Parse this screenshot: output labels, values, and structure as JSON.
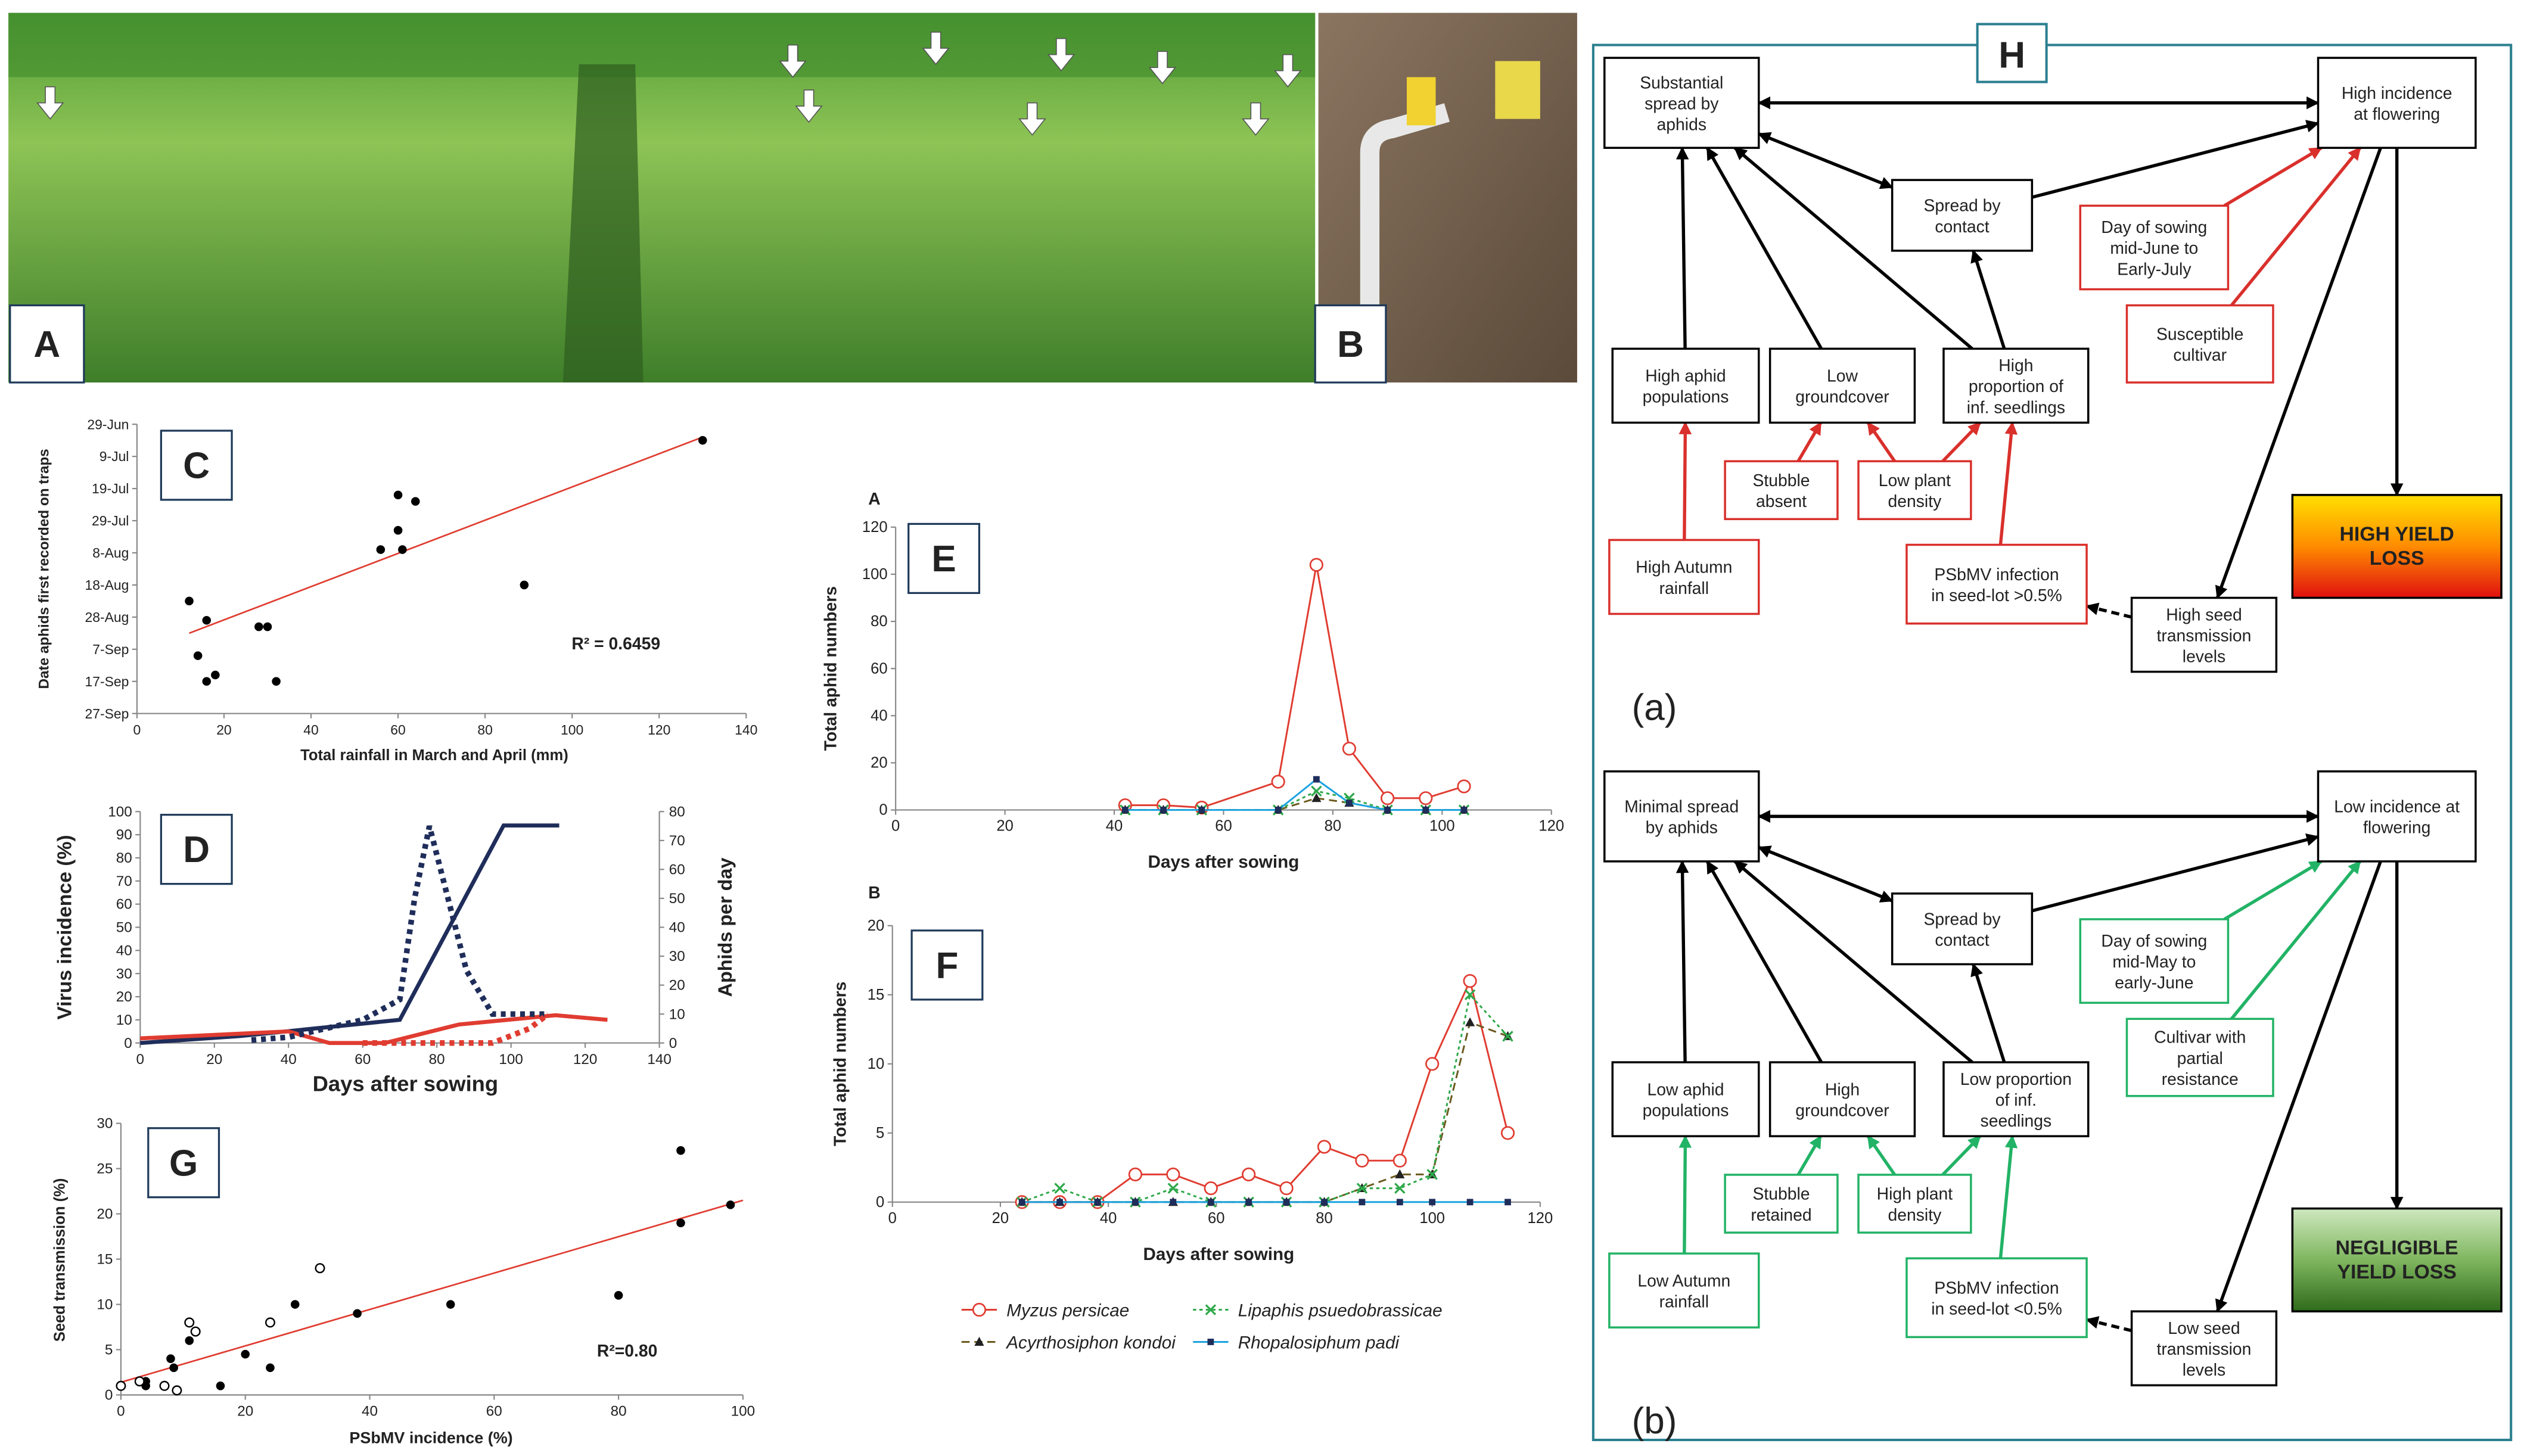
{
  "photos": [
    {
      "label": "A"
    },
    {
      "label": "B"
    }
  ],
  "chart_data": [
    {
      "type": "scatter",
      "panel": "C",
      "xlabel": "Total rainfall in March and April (mm)",
      "ylabel": "Date aphids first recorded on traps",
      "annotation": "R² = 0.6459",
      "xlim": [
        0,
        140
      ],
      "xticks": [
        0,
        20,
        40,
        60,
        80,
        100,
        120,
        140
      ],
      "ylim": [
        270,
        180
      ],
      "yticks": [
        {
          "value": 180,
          "label": "29-Jun"
        },
        {
          "value": 190,
          "label": "9-Jul"
        },
        {
          "value": 200,
          "label": "19-Jul"
        },
        {
          "value": 210,
          "label": "29-Jul"
        },
        {
          "value": 220,
          "label": "8-Aug"
        },
        {
          "value": 230,
          "label": "18-Aug"
        },
        {
          "value": 240,
          "label": "28-Aug"
        },
        {
          "value": 250,
          "label": "7-Sep"
        },
        {
          "value": 260,
          "label": "17-Sep"
        },
        {
          "value": 270,
          "label": "27-Sep"
        }
      ],
      "series": [
        {
          "color": "#000000",
          "marker": "circle",
          "x": [
            12,
            16,
            14,
            16,
            18,
            28,
            30,
            32,
            56,
            60,
            60,
            61,
            64,
            89,
            130
          ],
          "values": [
            235,
            241,
            252,
            260,
            258,
            243,
            243,
            260,
            219,
            202,
            213,
            219,
            204,
            230,
            185
          ]
        }
      ],
      "trendline": {
        "color": "#e03c31",
        "x": [
          12,
          130
        ],
        "values": [
          245,
          184
        ]
      }
    },
    {
      "type": "line",
      "panel": "D",
      "xlabel": "Days after sowing",
      "ylabel": "Virus incidence (%)",
      "y2label": "Aphids per day",
      "xlim": [
        0,
        140
      ],
      "xticks": [
        0,
        20,
        40,
        60,
        80,
        100,
        120,
        140
      ],
      "ylim": [
        0,
        100
      ],
      "yticks": [
        0,
        10,
        20,
        30,
        40,
        50,
        60,
        70,
        80,
        90,
        100
      ],
      "y2lim": [
        0,
        80
      ],
      "y2ticks": [
        0,
        10,
        20,
        30,
        40,
        50,
        60,
        70,
        80
      ],
      "series": [
        {
          "color": "#1f2d5a",
          "style": "solid",
          "x": [
            0,
            27,
            70,
            98,
            113
          ],
          "values": [
            0,
            3,
            10,
            94,
            94
          ]
        },
        {
          "color": "#e03c31",
          "style": "solid",
          "x": [
            0,
            40,
            51,
            66,
            86,
            112,
            126
          ],
          "values": [
            2,
            5,
            0,
            0,
            8,
            12,
            10
          ]
        },
        {
          "color": "#1f2d5a",
          "style": "dotted",
          "axis": "y2",
          "x": [
            30,
            40,
            60,
            70,
            74,
            78,
            82,
            88,
            95,
            100,
            110
          ],
          "values": [
            1,
            2,
            8,
            15,
            50,
            75,
            55,
            25,
            10,
            10,
            10
          ]
        },
        {
          "color": "#e03c31",
          "style": "dotted",
          "axis": "y2",
          "x": [
            60,
            95,
            105,
            110
          ],
          "values": [
            0,
            0,
            5,
            10
          ]
        }
      ]
    },
    {
      "type": "line",
      "panel": "E",
      "subtitle": "A",
      "xlabel": "Days after sowing",
      "ylabel": "Total aphid numbers",
      "xlim": [
        0,
        120
      ],
      "xticks": [
        0,
        20,
        40,
        60,
        80,
        100,
        120
      ],
      "ylim": [
        0,
        120
      ],
      "yticks": [
        0,
        20,
        40,
        60,
        80,
        100,
        120
      ],
      "x": [
        42,
        49,
        56,
        70,
        77,
        83,
        90,
        97,
        104
      ],
      "series": [
        {
          "color": "#e03c31",
          "style": "solid",
          "marker": "open-circle",
          "values": [
            2,
            2,
            1,
            12,
            104,
            26,
            5,
            5,
            10
          ]
        },
        {
          "color": "#6b5a1e",
          "style": "dashed",
          "marker": "triangle",
          "values": [
            0,
            0,
            0,
            0,
            5,
            3,
            0,
            0,
            0
          ]
        },
        {
          "color": "#2ea84a",
          "style": "dotted",
          "marker": "x",
          "values": [
            0,
            0,
            0,
            0,
            8,
            5,
            0,
            0,
            0
          ]
        },
        {
          "color": "#1ba3e0",
          "style": "solid",
          "marker": "square",
          "values": [
            0,
            0,
            0,
            0,
            13,
            3,
            0,
            0,
            0
          ]
        }
      ]
    },
    {
      "type": "line",
      "panel": "F",
      "subtitle": "B",
      "xlabel": "Days after sowing",
      "ylabel": "Total aphid numbers",
      "xlim": [
        0,
        120
      ],
      "xticks": [
        0,
        20,
        40,
        60,
        80,
        100,
        120
      ],
      "ylim": [
        0,
        20
      ],
      "yticks": [
        0,
        5,
        10,
        15,
        20
      ],
      "x": [
        24,
        31,
        38,
        45,
        52,
        59,
        66,
        73,
        80,
        87,
        94,
        100,
        107,
        114
      ],
      "series": [
        {
          "name": "Myzus persicae",
          "color": "#e03c31",
          "style": "solid",
          "marker": "open-circle",
          "values": [
            0,
            0,
            0,
            2,
            2,
            1,
            2,
            1,
            4,
            3,
            3,
            10,
            16,
            5
          ]
        },
        {
          "name": "Acyrthosiphon kondoi",
          "color": "#6b5a1e",
          "style": "dashed",
          "marker": "triangle",
          "values": [
            0,
            0,
            0,
            0,
            0,
            0,
            0,
            0,
            0,
            1,
            2,
            2,
            13,
            12
          ]
        },
        {
          "name": "Lipaphis psuedobrassicae",
          "color": "#2ea84a",
          "style": "dotted",
          "marker": "x",
          "values": [
            0,
            1,
            0,
            0,
            1,
            0,
            0,
            0,
            0,
            1,
            1,
            2,
            15,
            12
          ]
        },
        {
          "name": "Rhopalosiphum padi",
          "color": "#1ba3e0",
          "style": "solid",
          "marker": "square",
          "values": [
            0,
            0,
            0,
            0,
            0,
            0,
            0,
            0,
            0,
            0,
            0,
            0,
            0,
            0
          ]
        }
      ]
    },
    {
      "type": "scatter",
      "panel": "G",
      "xlabel": "PSbMV incidence (%)",
      "ylabel": "Seed transmission (%)",
      "annotation": "R²=0.80",
      "xlim": [
        0,
        100
      ],
      "xticks": [
        0,
        20,
        40,
        60,
        80,
        100
      ],
      "ylim": [
        0,
        30
      ],
      "yticks": [
        0,
        5,
        10,
        15,
        20,
        25,
        30
      ],
      "series": [
        {
          "color": "#000000",
          "marker": "circle",
          "x": [
            4,
            4,
            8,
            8.5,
            11,
            16,
            20,
            24,
            28,
            38,
            53,
            80,
            90,
            90,
            98
          ],
          "values": [
            1.5,
            1,
            4,
            3,
            6,
            1,
            4.5,
            3,
            10,
            9,
            10,
            11,
            27,
            19,
            21
          ]
        },
        {
          "color": "#000000",
          "marker": "open",
          "x": [
            0,
            3,
            7,
            9,
            11,
            12,
            24,
            32
          ],
          "values": [
            1,
            1.5,
            1,
            0.5,
            8,
            7,
            8,
            14
          ]
        }
      ],
      "trendline": {
        "color": "#e03c31",
        "x": [
          0,
          100
        ],
        "values": [
          1.4,
          21.5
        ]
      }
    }
  ],
  "diagram": {
    "title": "H",
    "sections": [
      {
        "label": "(a)",
        "accent": "#d9302c",
        "nodes": [
          {
            "lines": [
              "Substantial",
              "spread by",
              "aphids"
            ],
            "border": "#000000"
          },
          {
            "lines": [
              "High incidence",
              "at flowering"
            ],
            "border": "#000000"
          },
          {
            "lines": [
              "Spread by",
              "contact"
            ],
            "border": "#000000"
          },
          {
            "lines": [
              "Day of sowing",
              "mid-June to",
              "Early-July"
            ],
            "border": "#d9302c"
          },
          {
            "lines": [
              "Susceptible",
              "cultivar"
            ],
            "border": "#d9302c"
          },
          {
            "lines": [
              "High aphid",
              "populations"
            ],
            "border": "#000000"
          },
          {
            "lines": [
              "Low",
              "groundcover"
            ],
            "border": "#000000"
          },
          {
            "lines": [
              "High",
              "proportion of",
              "inf. seedlings"
            ],
            "border": "#000000"
          },
          {
            "lines": [
              "HIGH YIELD",
              "LOSS"
            ],
            "border": "#000000",
            "fill": [
              "#ffe000",
              "#ff8c00",
              "#e01010"
            ]
          },
          {
            "lines": [
              "Stubble",
              "absent"
            ],
            "border": "#d9302c"
          },
          {
            "lines": [
              "Low plant",
              "density"
            ],
            "border": "#d9302c"
          },
          {
            "lines": [
              "High Autumn",
              "rainfall"
            ],
            "border": "#d9302c"
          },
          {
            "lines": [
              "PSbMV infection",
              "in seed-lot >0.5%"
            ],
            "border": "#d9302c"
          },
          {
            "lines": [
              "High seed",
              "transmission",
              "levels"
            ],
            "border": "#000000"
          }
        ]
      },
      {
        "label": "(b)",
        "accent": "#22b366",
        "nodes": [
          {
            "lines": [
              "Minimal spread",
              "by aphids"
            ],
            "border": "#000000"
          },
          {
            "lines": [
              "Low incidence at",
              "flowering"
            ],
            "border": "#000000"
          },
          {
            "lines": [
              "Spread by",
              "contact"
            ],
            "border": "#000000"
          },
          {
            "lines": [
              "Day of sowing",
              "mid-May to",
              "early-June"
            ],
            "border": "#22b366"
          },
          {
            "lines": [
              "Cultivar with",
              "partial",
              "resistance"
            ],
            "border": "#22b366"
          },
          {
            "lines": [
              "Low aphid",
              "populations"
            ],
            "border": "#000000"
          },
          {
            "lines": [
              "High",
              "groundcover"
            ],
            "border": "#000000"
          },
          {
            "lines": [
              "Low proportion",
              "of inf.",
              "seedlings"
            ],
            "border": "#000000"
          },
          {
            "lines": [
              "NEGLIGIBLE",
              "YIELD LOSS"
            ],
            "border": "#000000",
            "fill": [
              "#cfe8c0",
              "#7fb65e",
              "#2f6b1c"
            ]
          },
          {
            "lines": [
              "Stubble",
              "retained"
            ],
            "border": "#22b366"
          },
          {
            "lines": [
              "High plant",
              "density"
            ],
            "border": "#22b366"
          },
          {
            "lines": [
              "Low Autumn",
              "rainfall"
            ],
            "border": "#22b366"
          },
          {
            "lines": [
              "PSbMV infection",
              "in seed-lot <0.5%"
            ],
            "border": "#22b366"
          },
          {
            "lines": [
              "Low seed",
              "transmission",
              "levels"
            ],
            "border": "#000000"
          }
        ]
      }
    ]
  }
}
